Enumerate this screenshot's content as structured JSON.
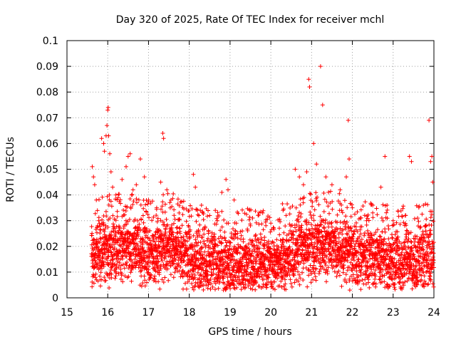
{
  "chart_data": {
    "type": "scatter",
    "title": "Day 320 of 2025, Rate Of TEC Index for receiver mchl",
    "xlabel": "GPS time / hours",
    "ylabel": "ROTI / TECUs",
    "xlim": [
      15,
      24
    ],
    "ylim": [
      0,
      0.1
    ],
    "xticks": [
      15,
      16,
      17,
      18,
      19,
      20,
      21,
      22,
      23,
      24
    ],
    "yticks": [
      0,
      0.01,
      0.02,
      0.03,
      0.04,
      0.05,
      0.06,
      0.07,
      0.08,
      0.09,
      0.1
    ],
    "grid": true,
    "marker": "+",
    "color": "#ff0000",
    "data_range_hours": [
      15.6,
      24.0
    ],
    "series": [
      {
        "name": "ROTI",
        "points": [
          [
            15.62,
            0.051
          ],
          [
            15.65,
            0.047
          ],
          [
            15.68,
            0.044
          ],
          [
            15.72,
            0.038
          ],
          [
            15.78,
            0.03
          ],
          [
            15.85,
            0.062
          ],
          [
            15.9,
            0.06
          ],
          [
            15.92,
            0.057
          ],
          [
            15.96,
            0.063
          ],
          [
            15.98,
            0.067
          ],
          [
            16.0,
            0.073
          ],
          [
            16.01,
            0.074
          ],
          [
            16.02,
            0.063
          ],
          [
            16.05,
            0.056
          ],
          [
            16.08,
            0.049
          ],
          [
            16.12,
            0.043
          ],
          [
            16.2,
            0.04
          ],
          [
            16.35,
            0.046
          ],
          [
            16.45,
            0.051
          ],
          [
            16.5,
            0.055
          ],
          [
            16.55,
            0.056
          ],
          [
            16.62,
            0.042
          ],
          [
            16.7,
            0.044
          ],
          [
            16.8,
            0.054
          ],
          [
            16.9,
            0.047
          ],
          [
            17.0,
            0.038
          ],
          [
            17.2,
            0.035
          ],
          [
            17.3,
            0.045
          ],
          [
            17.35,
            0.064
          ],
          [
            17.37,
            0.062
          ],
          [
            17.45,
            0.042
          ],
          [
            17.55,
            0.038
          ],
          [
            17.75,
            0.033
          ],
          [
            18.1,
            0.048
          ],
          [
            18.15,
            0.043
          ],
          [
            18.3,
            0.036
          ],
          [
            18.5,
            0.032
          ],
          [
            18.8,
            0.041
          ],
          [
            18.9,
            0.046
          ],
          [
            18.95,
            0.042
          ],
          [
            19.1,
            0.038
          ],
          [
            19.3,
            0.026
          ],
          [
            19.5,
            0.028
          ],
          [
            19.8,
            0.033
          ],
          [
            20.0,
            0.029
          ],
          [
            20.3,
            0.034
          ],
          [
            20.6,
            0.05
          ],
          [
            20.7,
            0.047
          ],
          [
            20.8,
            0.044
          ],
          [
            20.88,
            0.049
          ],
          [
            20.93,
            0.085
          ],
          [
            20.95,
            0.082
          ],
          [
            21.05,
            0.06
          ],
          [
            21.12,
            0.052
          ],
          [
            21.22,
            0.09
          ],
          [
            21.27,
            0.075
          ],
          [
            21.35,
            0.047
          ],
          [
            21.5,
            0.044
          ],
          [
            21.7,
            0.042
          ],
          [
            21.85,
            0.047
          ],
          [
            21.9,
            0.069
          ],
          [
            21.92,
            0.054
          ],
          [
            22.0,
            0.035
          ],
          [
            22.2,
            0.031
          ],
          [
            22.5,
            0.036
          ],
          [
            22.7,
            0.043
          ],
          [
            22.8,
            0.055
          ],
          [
            22.85,
            0.036
          ],
          [
            23.0,
            0.03
          ],
          [
            23.3,
            0.032
          ],
          [
            23.4,
            0.055
          ],
          [
            23.45,
            0.053
          ],
          [
            23.6,
            0.031
          ],
          [
            23.8,
            0.028
          ],
          [
            23.88,
            0.069
          ],
          [
            23.92,
            0.053
          ],
          [
            23.95,
            0.055
          ],
          [
            23.97,
            0.045
          ]
        ],
        "baseline": {
          "typical_range": [
            0.005,
            0.03
          ],
          "median_profile": [
            [
              15.6,
              0.016
            ],
            [
              16.0,
              0.018
            ],
            [
              16.5,
              0.019
            ],
            [
              17.0,
              0.016
            ],
            [
              17.5,
              0.02
            ],
            [
              18.0,
              0.014
            ],
            [
              18.5,
              0.014
            ],
            [
              19.0,
              0.012
            ],
            [
              19.5,
              0.013
            ],
            [
              20.0,
              0.013
            ],
            [
              20.5,
              0.016
            ],
            [
              21.0,
              0.019
            ],
            [
              21.5,
              0.02
            ],
            [
              22.0,
              0.016
            ],
            [
              22.5,
              0.015
            ],
            [
              23.0,
              0.014
            ],
            [
              23.5,
              0.014
            ],
            [
              24.0,
              0.016
            ]
          ]
        }
      }
    ]
  }
}
